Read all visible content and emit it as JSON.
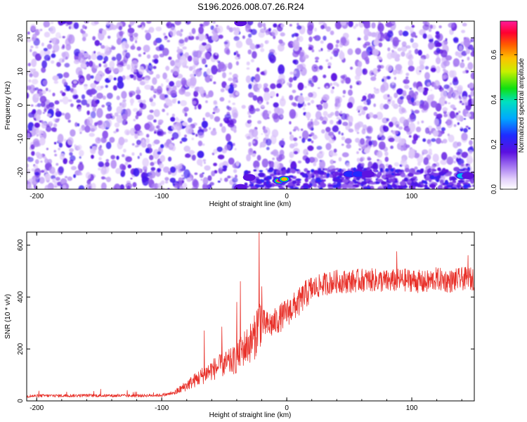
{
  "figure_title": "S196.2026.008.07.26.R24",
  "colors": {
    "snr_line": "#e8312a",
    "spectrogram_base": "#6a1bd8",
    "axis": "#000000"
  },
  "chart_data": [
    {
      "type": "heatmap",
      "xlabel": "Height of straight line (km)",
      "ylabel": "Frequency (Hz)",
      "xlim": [
        -208,
        150
      ],
      "ylim": [
        -25,
        25
      ],
      "x_ticks": [
        -200,
        -100,
        0,
        100
      ],
      "x_tick_labels": [
        "-200",
        "-100",
        "0",
        "100"
      ],
      "y_ticks": [
        -20,
        -10,
        0,
        10,
        20
      ],
      "y_tick_labels": [
        "-20",
        "-10",
        "0",
        "10",
        "20"
      ],
      "colorbar": {
        "label": "Normalized spectral amplitude",
        "range": [
          0,
          0.75
        ],
        "ticks": [
          0.0,
          0.2,
          0.4,
          0.6
        ],
        "tick_labels": [
          "0.0",
          "0.2",
          "0.4",
          "0.6"
        ],
        "colormap": "rainbow"
      },
      "hotspots": [
        {
          "x": -6,
          "y": -22.5,
          "value": 0.75
        },
        {
          "x": -2,
          "y": -22.0,
          "value": 0.6
        },
        {
          "x": 50,
          "y": -20.5,
          "value": 0.3
        },
        {
          "x": 57,
          "y": -20.5,
          "value": 0.25
        },
        {
          "x": 65,
          "y": -20.5,
          "value": 0.2
        },
        {
          "x": 140,
          "y": -21.0,
          "value": 0.35
        },
        {
          "x": 145,
          "y": -21.0,
          "value": 0.2
        },
        {
          "x": -37,
          "y": -24.5,
          "value": 0.2
        },
        {
          "x": -37,
          "y": 24.5,
          "value": 0.2
        },
        {
          "x": -30,
          "y": -21.5,
          "value": 0.15
        }
      ]
    },
    {
      "type": "line",
      "xlabel": "Height of straight line (km)",
      "ylabel": "SNR (10 * v/v)",
      "xlim": [
        -208,
        150
      ],
      "ylim": [
        0,
        650
      ],
      "x_ticks": [
        -200,
        -100,
        0,
        100
      ],
      "x_tick_labels": [
        "-200",
        "-100",
        "0",
        "100"
      ],
      "y_ticks": [
        0,
        200,
        400,
        600
      ],
      "y_tick_labels": [
        "0",
        "200",
        "400",
        "600"
      ],
      "series": [
        {
          "x": [
            -208,
            -195,
            -180,
            -160,
            -140,
            -120,
            -100,
            -90,
            -85,
            -80,
            -70,
            -60,
            -50,
            -40,
            -35,
            -30,
            -25,
            -22,
            -20,
            -15,
            -10,
            -5,
            0,
            5,
            10,
            15,
            20,
            30,
            40,
            50,
            60,
            70,
            80,
            90,
            100,
            110,
            120,
            130,
            140,
            150
          ],
          "y": [
            18,
            20,
            20,
            21,
            20,
            20,
            22,
            30,
            45,
            60,
            90,
            120,
            140,
            160,
            200,
            220,
            250,
            330,
            300,
            290,
            300,
            320,
            340,
            360,
            380,
            410,
            430,
            450,
            460,
            460,
            465,
            465,
            460,
            465,
            465,
            455,
            470,
            460,
            470,
            470
          ],
          "spikes": [
            {
              "x": -66,
              "y": 270
            },
            {
              "x": -52,
              "y": 285
            },
            {
              "x": -40,
              "y": 380
            },
            {
              "x": -37,
              "y": 460
            },
            {
              "x": -22,
              "y": 650
            },
            {
              "x": -20,
              "y": 440
            },
            {
              "x": 88,
              "y": 575
            },
            {
              "x": 145,
              "y": 560
            }
          ]
        }
      ]
    }
  ]
}
